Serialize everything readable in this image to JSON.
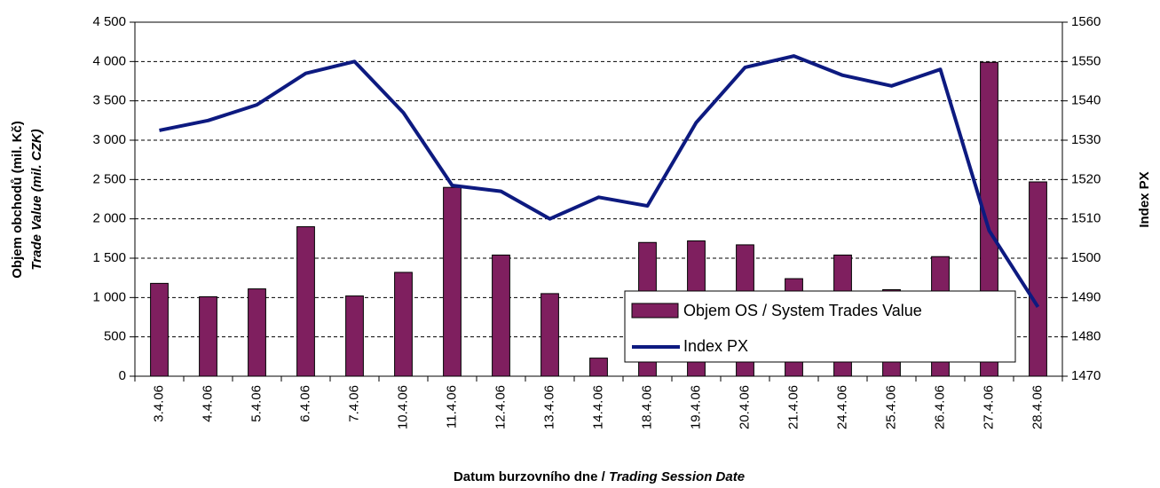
{
  "chart_data": {
    "type": "bar_line",
    "categories": [
      "3.4.06",
      "4.4.06",
      "5.4.06",
      "6.4.06",
      "7.4.06",
      "10.4.06",
      "11.4.06",
      "12.4.06",
      "13.4.06",
      "14.4.06",
      "18.4.06",
      "19.4.06",
      "20.4.06",
      "21.4.06",
      "24.4.06",
      "25.4.06",
      "26.4.06",
      "27.4.06",
      "28.4.06"
    ],
    "series": [
      {
        "name": "Objem OS / System Trades Value",
        "type": "bar",
        "color": "#7f1f5f",
        "values": [
          1180,
          1010,
          1110,
          1900,
          1020,
          1320,
          2400,
          1540,
          1050,
          230,
          1700,
          1720,
          1670,
          1240,
          1540,
          1100,
          1520,
          3990,
          2470
        ]
      },
      {
        "name": "Index PX",
        "type": "line",
        "axis": "y2",
        "color": "#0d1a80",
        "values": [
          1532.5,
          1535,
          1539,
          1547,
          1550,
          1537,
          1518.5,
          1517,
          1510,
          1515.5,
          1513.3,
          1534.5,
          1548.5,
          1551.4,
          1546.5,
          1543.8,
          1548,
          1507,
          1487.6
        ]
      }
    ],
    "ylabel": [
      "Objem obchodů (mil. Kč)",
      "Trade Value (mil. CZK)"
    ],
    "y2label": "Index PX",
    "xlabel": [
      "Datum burzovního dne / ",
      "Trading Session Date"
    ],
    "ylim": [
      0,
      4500
    ],
    "yticks": [
      0,
      500,
      {
        "value": 1000,
        "label": "1 000"
      },
      {
        "value": 1500,
        "label": "1 500"
      },
      {
        "value": 2000,
        "label": "2 000"
      },
      {
        "value": 2500,
        "label": "2 500"
      },
      {
        "value": 3000,
        "label": "3 000"
      },
      {
        "value": 3500,
        "label": "3 500"
      },
      {
        "value": 4000,
        "label": "4 000"
      },
      {
        "value": 4500,
        "label": "4 500"
      }
    ],
    "y2lim": [
      1470,
      1560
    ],
    "y2ticks": [
      1470,
      1480,
      1490,
      1500,
      1510,
      1520,
      1530,
      1540,
      1550,
      1560
    ],
    "grid": true
  }
}
